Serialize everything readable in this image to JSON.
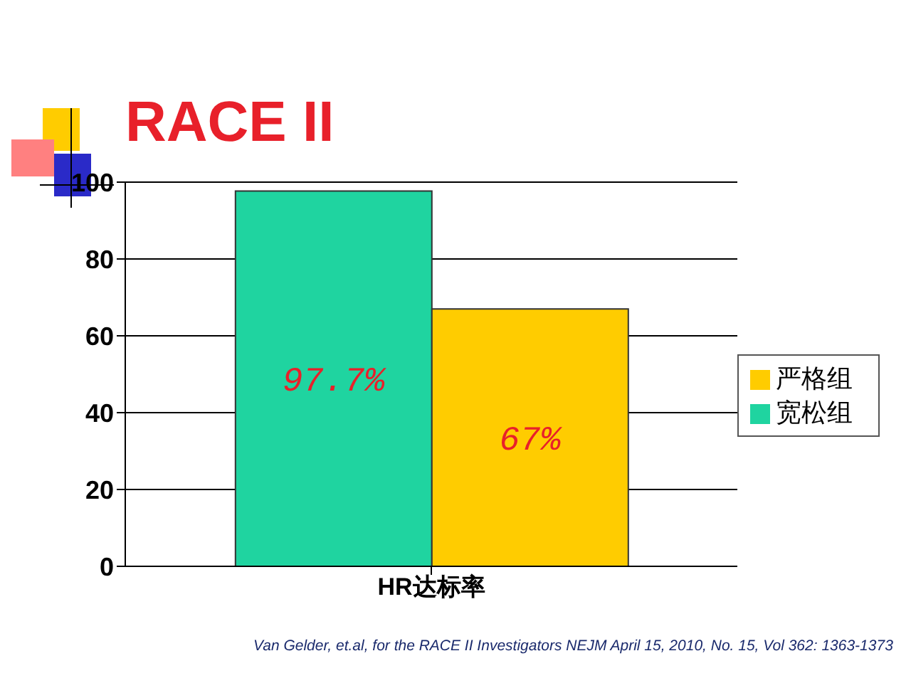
{
  "chart_data": {
    "type": "bar",
    "title": "RACE II",
    "categories": [
      "HR达标率"
    ],
    "series": [
      {
        "name": "宽松组",
        "color": "#1fd4a0",
        "values": [
          97.7
        ],
        "value_labels": [
          "97.7%"
        ]
      },
      {
        "name": "严格组",
        "color": "#ffcc00",
        "values": [
          67
        ],
        "value_labels": [
          "67%"
        ]
      }
    ],
    "ylim": [
      0,
      100
    ],
    "yticks": [
      0,
      20,
      40,
      60,
      80,
      100
    ],
    "grid": "y",
    "legend": "right",
    "annotations": [
      "Van Gelder, et.al, for the RACE II Investigators NEJM April 15, 2010, No. 15, Vol 362: 1363-1373"
    ]
  }
}
